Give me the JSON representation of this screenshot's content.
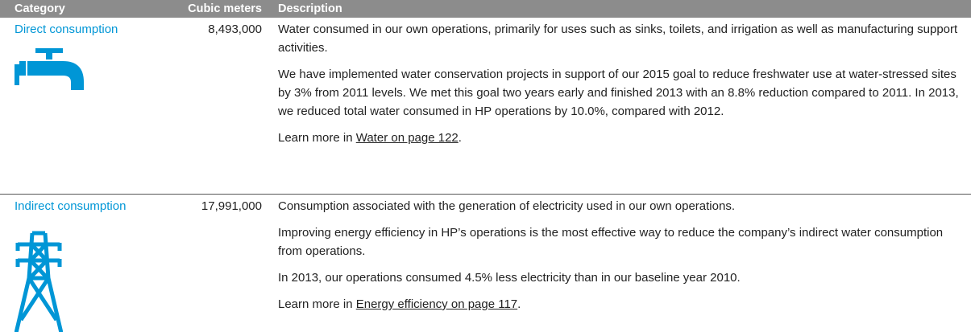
{
  "table": {
    "columns": [
      "Category",
      "Cubic meters",
      "Description"
    ],
    "rows": [
      {
        "category": "Direct consumption",
        "cubic_meters": "8,493,000",
        "paragraphs": [
          "Water consumed in our own operations, primarily for uses such as sinks, toilets, and irrigation as well as manufacturing support activities.",
          "We have implemented water conservation projects in support of our 2015 goal to reduce freshwater use at water-stressed sites by 3% from 2011 levels. We met this goal two years early and finished 2013 with an 8.8% reduction compared to 2011. In 2013, we reduced total water consumed in HP operations by 10.0%, compared with 2012."
        ],
        "learn_more": {
          "prefix": "Learn more in",
          "link": "Water on page 122",
          "suffix": "."
        }
      },
      {
        "category": "Indirect consumption",
        "cubic_meters": "17,991,000",
        "paragraphs": [
          "Consumption associated with the generation of electricity used in our own operations.",
          "Improving energy efficiency in HP’s operations is the most effective way to reduce the company’s indirect water consumption from operations.",
          "In 2013, our operations consumed 4.5% less electricity than in our baseline year 2010."
        ],
        "learn_more": {
          "prefix": "Learn more in",
          "link": "Energy efficiency on page 117",
          "suffix": "."
        }
      }
    ]
  }
}
